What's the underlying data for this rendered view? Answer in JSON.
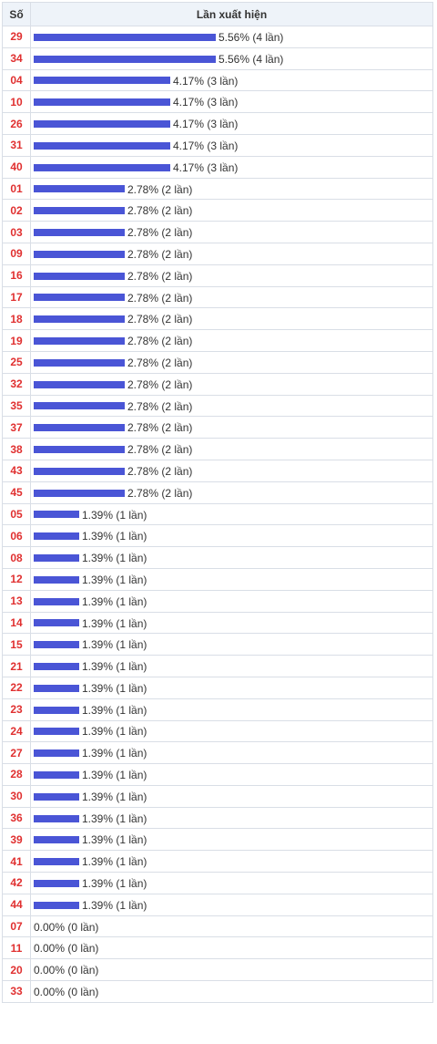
{
  "header": {
    "col_number": "Số",
    "col_freq": "Lần xuất hiện"
  },
  "colors": {
    "bar": "#4a55d6",
    "number": "#e03030",
    "header_bg": "#eef3f9"
  },
  "chart_data": {
    "type": "bar",
    "orientation": "horizontal",
    "categories": [
      "29",
      "34",
      "04",
      "10",
      "26",
      "31",
      "40",
      "01",
      "02",
      "03",
      "09",
      "16",
      "17",
      "18",
      "19",
      "25",
      "32",
      "35",
      "37",
      "38",
      "43",
      "45",
      "05",
      "06",
      "08",
      "12",
      "13",
      "14",
      "15",
      "21",
      "22",
      "23",
      "24",
      "27",
      "28",
      "30",
      "36",
      "39",
      "41",
      "42",
      "44",
      "07",
      "11",
      "20",
      "33"
    ],
    "values": [
      5.56,
      5.56,
      4.17,
      4.17,
      4.17,
      4.17,
      4.17,
      2.78,
      2.78,
      2.78,
      2.78,
      2.78,
      2.78,
      2.78,
      2.78,
      2.78,
      2.78,
      2.78,
      2.78,
      2.78,
      2.78,
      2.78,
      1.39,
      1.39,
      1.39,
      1.39,
      1.39,
      1.39,
      1.39,
      1.39,
      1.39,
      1.39,
      1.39,
      1.39,
      1.39,
      1.39,
      1.39,
      1.39,
      1.39,
      1.39,
      1.39,
      0.0,
      0.0,
      0.0,
      0.0
    ],
    "counts": [
      4,
      4,
      3,
      3,
      3,
      3,
      3,
      2,
      2,
      2,
      2,
      2,
      2,
      2,
      2,
      2,
      2,
      2,
      2,
      2,
      2,
      2,
      1,
      1,
      1,
      1,
      1,
      1,
      1,
      1,
      1,
      1,
      1,
      1,
      1,
      1,
      1,
      1,
      1,
      1,
      1,
      0,
      0,
      0,
      0
    ],
    "labels": [
      "5.56% (4 lần)",
      "5.56% (4 lần)",
      "4.17% (3 lần)",
      "4.17% (3 lần)",
      "4.17% (3 lần)",
      "4.17% (3 lần)",
      "4.17% (3 lần)",
      "2.78% (2 lần)",
      "2.78% (2 lần)",
      "2.78% (2 lần)",
      "2.78% (2 lần)",
      "2.78% (2 lần)",
      "2.78% (2 lần)",
      "2.78% (2 lần)",
      "2.78% (2 lần)",
      "2.78% (2 lần)",
      "2.78% (2 lần)",
      "2.78% (2 lần)",
      "2.78% (2 lần)",
      "2.78% (2 lần)",
      "2.78% (2 lần)",
      "2.78% (2 lần)",
      "1.39% (1 lần)",
      "1.39% (1 lần)",
      "1.39% (1 lần)",
      "1.39% (1 lần)",
      "1.39% (1 lần)",
      "1.39% (1 lần)",
      "1.39% (1 lần)",
      "1.39% (1 lần)",
      "1.39% (1 lần)",
      "1.39% (1 lần)",
      "1.39% (1 lần)",
      "1.39% (1 lần)",
      "1.39% (1 lần)",
      "1.39% (1 lần)",
      "1.39% (1 lần)",
      "1.39% (1 lần)",
      "1.39% (1 lần)",
      "1.39% (1 lần)",
      "1.39% (1 lần)",
      "0.00% (0 lần)",
      "0.00% (0 lần)",
      "0.00% (0 lần)",
      "0.00% (0 lần)"
    ]
  }
}
